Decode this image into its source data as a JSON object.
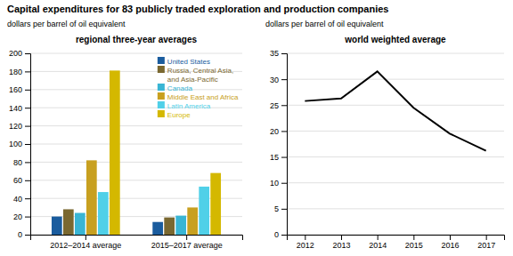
{
  "title": "Capital expenditures for 83 publicly traded exploration and production companies",
  "chart_data": [
    {
      "type": "bar",
      "title": "regional three-year averages",
      "subtitle": "dollars per barrel of oil equivalent",
      "categories": [
        "2012–2014 average",
        "2015–2017 average"
      ],
      "series": [
        {
          "name": "United States",
          "color": "#1a5c9e",
          "values": [
            20,
            14
          ]
        },
        {
          "name": "Russia, Central Asia,\nand Asia-Pacific",
          "color": "#7a6830",
          "values": [
            28,
            19
          ]
        },
        {
          "name": "Canada",
          "color": "#39b5d4",
          "values": [
            24,
            21
          ]
        },
        {
          "name": "Middle East and Africa",
          "color": "#c8a020",
          "values": [
            82,
            30
          ]
        },
        {
          "name": "Latin America",
          "color": "#50d0e8",
          "values": [
            47,
            53
          ]
        },
        {
          "name": "Europe",
          "color": "#d4b800",
          "values": [
            181,
            68
          ]
        }
      ],
      "ylim": [
        0,
        200
      ],
      "yticks": [
        0,
        20,
        40,
        60,
        80,
        100,
        120,
        140,
        160,
        180,
        200
      ],
      "grid": true,
      "legend": "upper right"
    },
    {
      "type": "line",
      "title": "world weighted average",
      "subtitle": "dollars per barrel of oil equivalent",
      "x": [
        2012,
        2013,
        2014,
        2015,
        2016,
        2017
      ],
      "values": [
        25.8,
        26.3,
        31.5,
        24.5,
        19.5,
        16.2
      ],
      "color": "black",
      "xlim": [
        2011.5,
        2017.5
      ],
      "xticks": [
        2012,
        2013,
        2014,
        2015,
        2016,
        2017
      ],
      "ylim": [
        0,
        35
      ],
      "yticks": [
        0,
        5,
        10,
        15,
        20,
        25,
        30,
        35
      ],
      "grid": true
    }
  ]
}
